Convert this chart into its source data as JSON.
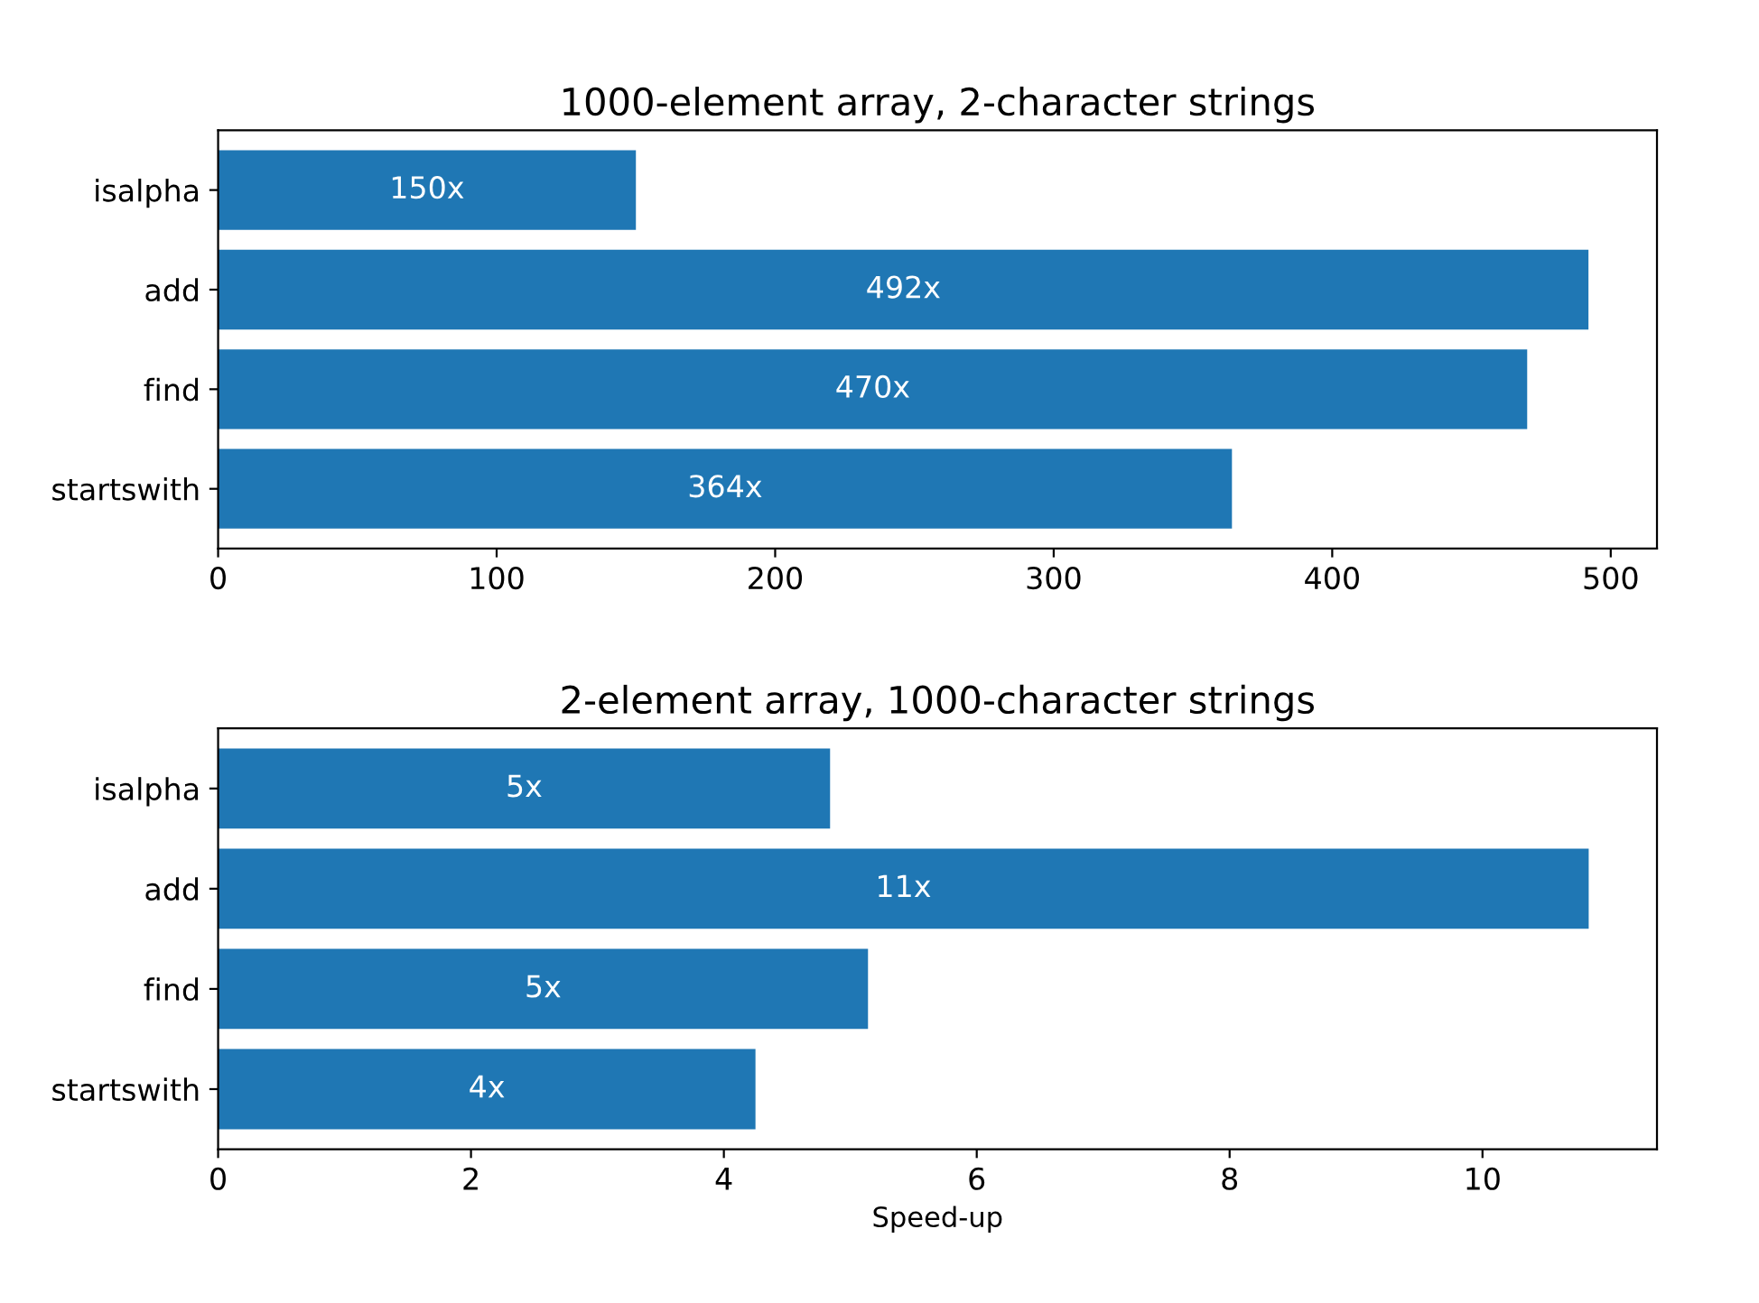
{
  "chart_data": [
    {
      "type": "bar",
      "orientation": "horizontal",
      "title": "1000-element array, 2-character strings",
      "categories": [
        "isalpha",
        "add",
        "find",
        "startswith"
      ],
      "values": [
        150,
        492,
        470,
        364
      ],
      "value_labels": [
        "150x",
        "492x",
        "470x",
        "364x"
      ],
      "color": "#1f77b4",
      "xlim": [
        0,
        516.6
      ],
      "xticks": [
        0,
        100,
        200,
        300,
        400,
        500
      ],
      "grid": false,
      "legend": false
    },
    {
      "type": "bar",
      "orientation": "horizontal",
      "title": "2-element array, 1000-character strings",
      "categories": [
        "isalpha",
        "add",
        "find",
        "startswith"
      ],
      "values": [
        4.84,
        10.84,
        5.14,
        4.25
      ],
      "value_labels": [
        "5x",
        "11x",
        "5x",
        "4x"
      ],
      "color": "#1f77b4",
      "xlim": [
        0,
        11.38
      ],
      "xticks": [
        0,
        2,
        4,
        6,
        8,
        10
      ],
      "xlabel": "Speed-up",
      "grid": false,
      "legend": false
    }
  ]
}
